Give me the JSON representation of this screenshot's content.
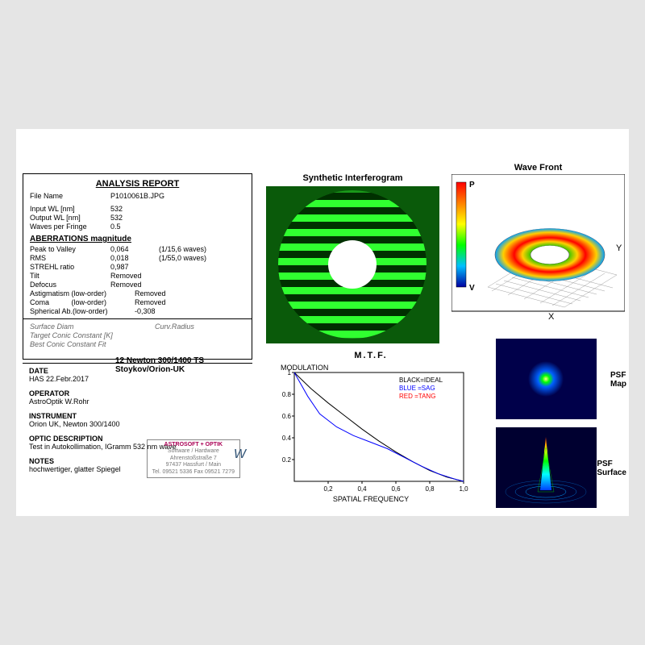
{
  "report": {
    "title": "ANALYSIS  REPORT",
    "file_name_label": "File Name",
    "file_name": "P1010061B.JPG",
    "input_wl_label": "Input  WL [nm]",
    "input_wl": "532",
    "output_wl_label": "Output WL [nm]",
    "output_wl": "532",
    "wpf_label": "Waves per Fringe",
    "wpf": "0.5",
    "aberr_head": "ABERRATIONS magnitude",
    "ptv_label": "Peak to Valley",
    "ptv_val": "0,064",
    "ptv_waves": "(1/15,6 waves)",
    "rms_label": "RMS",
    "rms_val": "0,018",
    "rms_waves": "(1/55,0 waves)",
    "strehl_label": "STREHL ratio",
    "strehl_val": "0,987",
    "tilt_label": "Tilt",
    "tilt_val": "Removed",
    "defocus_label": "Defocus",
    "defocus_val": "Removed",
    "astig_label": "Astigmatism  (low-order)",
    "astig_val": "Removed",
    "coma_label": "Coma           (low-order)",
    "coma_val": "Removed",
    "sph_label": "Spherical Ab.(low-order)",
    "sph_val": "-0,308",
    "surf_diam": "Surface Diam",
    "curv_radius": "Curv.Radius",
    "target_conic": "Target Conic Constant [K]",
    "best_conic": "Best Conic Constant Fit"
  },
  "lower": {
    "newton": "12 Newton  300/1400   TS Stoykov/Orion-UK",
    "date_head": "DATE",
    "date": "HAS 22.Febr.2017",
    "op_head": "OPERATOR",
    "op": "AstroOptik  W.Rohr",
    "inst_head": "INSTRUMENT",
    "inst": "Orion UK, Newton 300/1400",
    "optic_head": "OPTIC DESCRIPTION",
    "optic": "Test in Autokollimation, IGramm 532 nm wave",
    "notes_head": "NOTES",
    "notes": "hochwertiger, glatter Spiegel",
    "stamp_lines": [
      "ASTROSOFT + OPTIK",
      "Software / Hardware",
      "Ahrenstoßstraße 7",
      "97437 Hassfurt / Main",
      "Tel. 09521 5336 Fax 09521 7279"
    ]
  },
  "charts": {
    "interf_title": "Synthetic Interferogram",
    "wave_title": "Wave Front",
    "mtf_title": "M.T.F.",
    "mtf_ylabel": "MODULATION",
    "mtf_xlabel": "SPATIAL FREQUENCY",
    "mtf_legend_ideal": "BLACK=IDEAL",
    "mtf_legend_sag": "BLUE  =SAG",
    "mtf_legend_tang": "RED   =TANG",
    "psf_map": "PSF\nMap",
    "psf_surf": "PSF\nSurface",
    "colors": {
      "interf_bg": "#0a5a0a",
      "interf_ring": "#1eff1e",
      "interf_dark": "#004000",
      "wave_p": "P",
      "wave_v": "V",
      "mtf_ideal": "#000000",
      "mtf_sag": "#0000ff",
      "mtf_tang": "#ff0000",
      "psf_bg": "#00004a"
    },
    "mtf_ticks_y": [
      "0.2",
      "0.4",
      "0.6",
      "0.8",
      "1"
    ],
    "mtf_ticks_x": [
      "0,2",
      "0,4",
      "0,6",
      "0,8",
      "1,0"
    ],
    "mtf_ideal_pts": [
      [
        0,
        1
      ],
      [
        0.1,
        0.85
      ],
      [
        0.2,
        0.72
      ],
      [
        0.3,
        0.6
      ],
      [
        0.4,
        0.48
      ],
      [
        0.5,
        0.37
      ],
      [
        0.6,
        0.27
      ],
      [
        0.7,
        0.18
      ],
      [
        0.8,
        0.1
      ],
      [
        0.9,
        0.04
      ],
      [
        1.0,
        0
      ]
    ],
    "mtf_sag_pts": [
      [
        0,
        1
      ],
      [
        0.08,
        0.78
      ],
      [
        0.15,
        0.62
      ],
      [
        0.25,
        0.5
      ],
      [
        0.35,
        0.42
      ],
      [
        0.45,
        0.36
      ],
      [
        0.55,
        0.3
      ],
      [
        0.65,
        0.22
      ],
      [
        0.75,
        0.14
      ],
      [
        0.85,
        0.07
      ],
      [
        0.95,
        0.02
      ],
      [
        1.0,
        0
      ]
    ],
    "rainbow": [
      "#ff0000",
      "#ff7f00",
      "#ffff00",
      "#00ff00",
      "#00ffff",
      "#0000ff",
      "#4b0082"
    ]
  }
}
